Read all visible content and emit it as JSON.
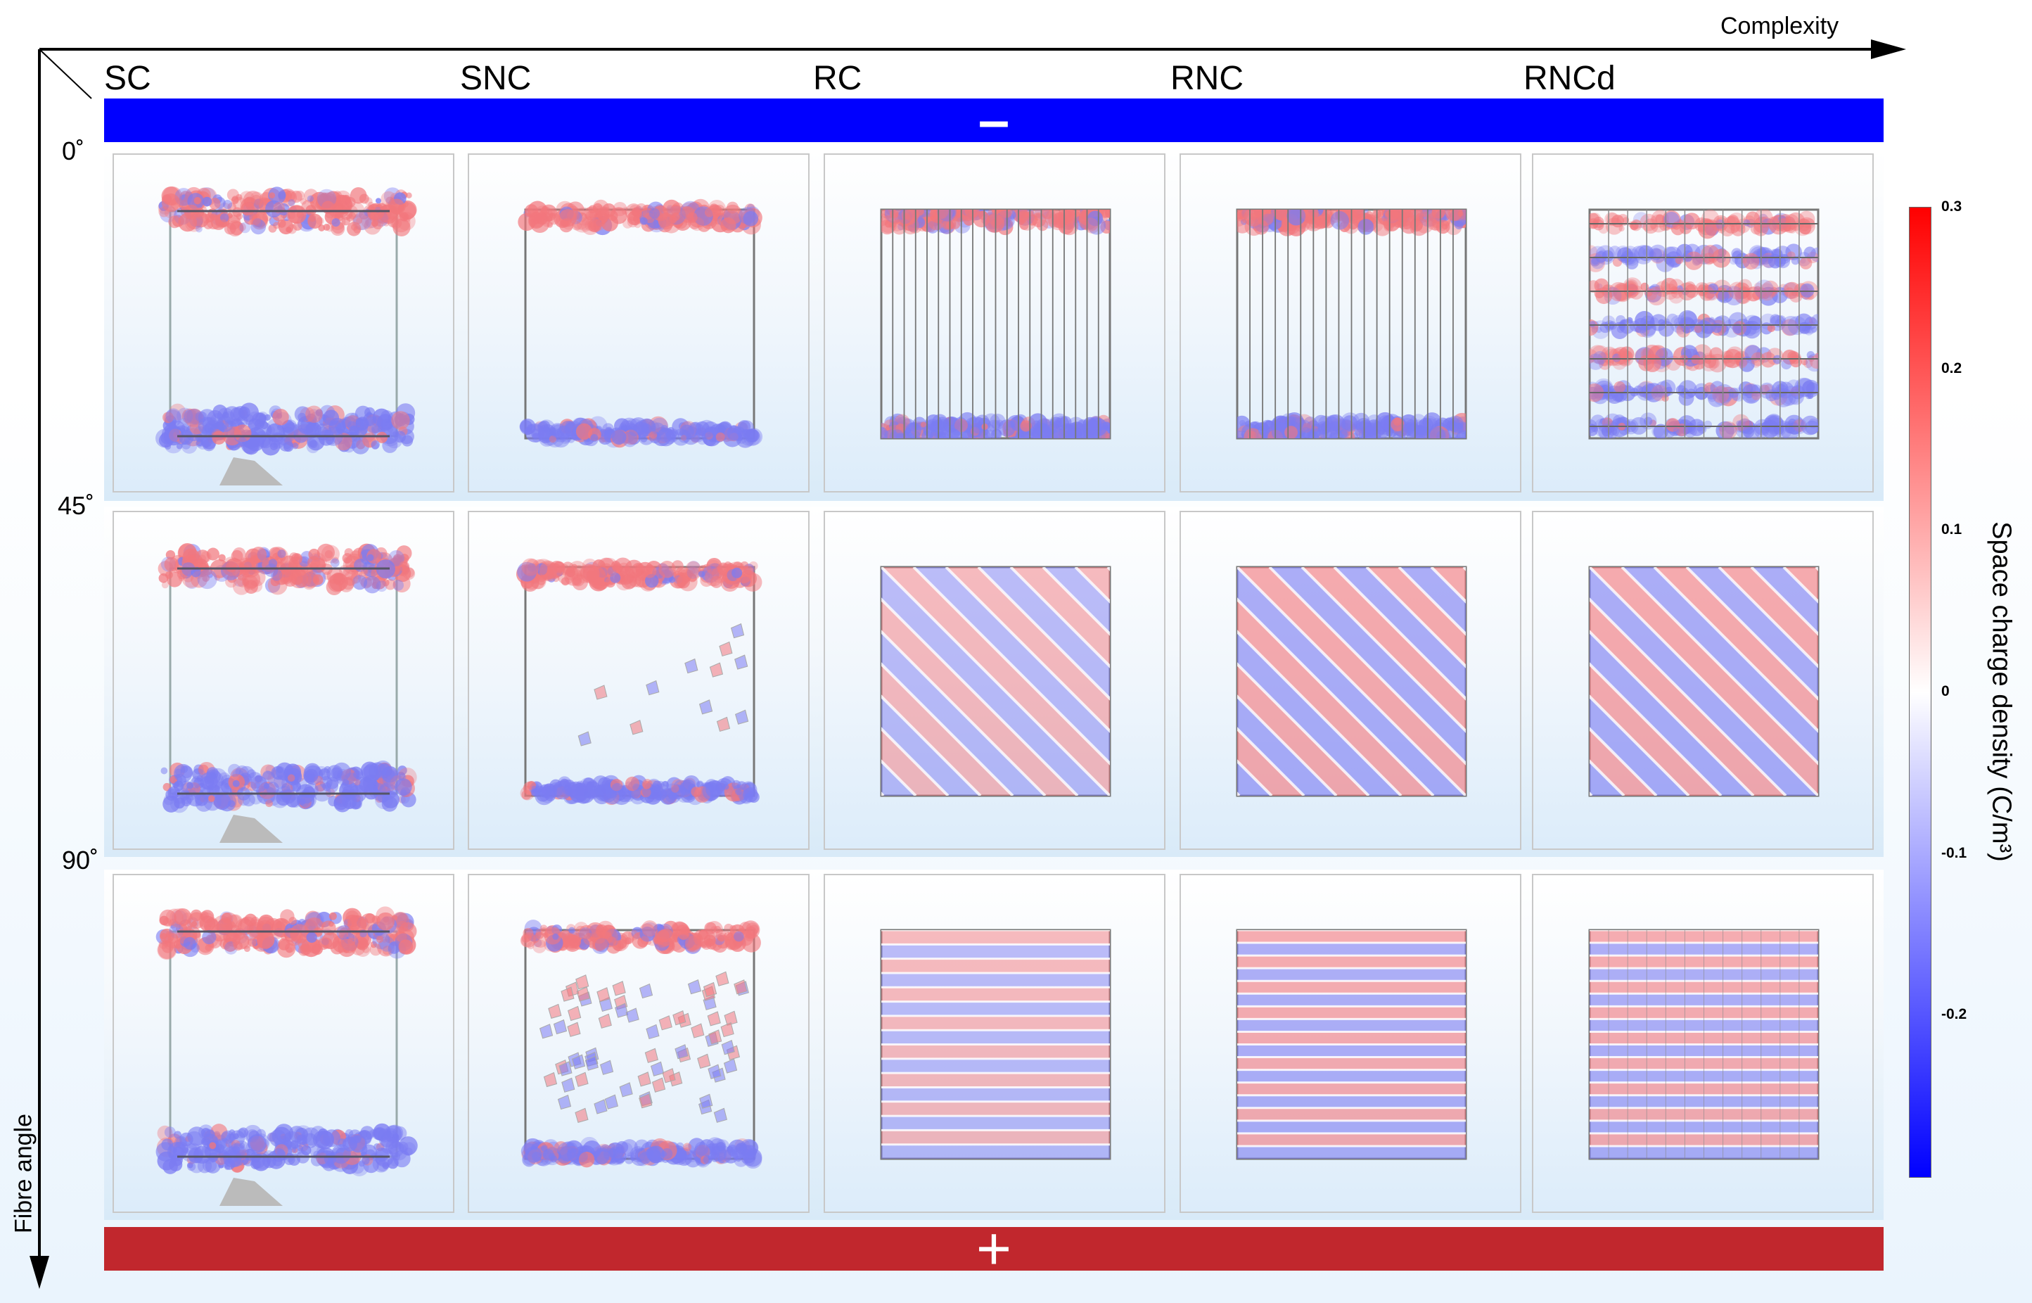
{
  "axes": {
    "x_label": "Complexity",
    "y_label": "Fibre angle"
  },
  "columns": [
    {
      "id": "SC",
      "label": "SC"
    },
    {
      "id": "SNC",
      "label": "SNC"
    },
    {
      "id": "RC",
      "label": "RC"
    },
    {
      "id": "RNC",
      "label": "RNC"
    },
    {
      "id": "RNCd",
      "label": "RNCd"
    }
  ],
  "rows": [
    {
      "label": "0˚",
      "angle": 0
    },
    {
      "label": "45˚",
      "angle": 45
    },
    {
      "label": "90˚",
      "angle": 90
    }
  ],
  "electrodes": {
    "negative_symbol": "–",
    "positive_symbol": "+",
    "negative_color": "#0000ff",
    "positive_color": "#c1272d"
  },
  "colorbar": {
    "title": "Space charge density (C/m³)",
    "max_color": "#ff0000",
    "mid_color": "#ffffff",
    "min_color": "#0000ff",
    "ticks": [
      {
        "label": "0.3",
        "value": 0.3
      },
      {
        "label": "0.2",
        "value": 0.2
      },
      {
        "label": "0.1",
        "value": 0.1
      },
      {
        "label": "0",
        "value": 0
      },
      {
        "label": "-0.1",
        "value": -0.1
      },
      {
        "label": "-0.2",
        "value": -0.2
      }
    ],
    "range": [
      -0.3,
      0.3
    ]
  }
}
